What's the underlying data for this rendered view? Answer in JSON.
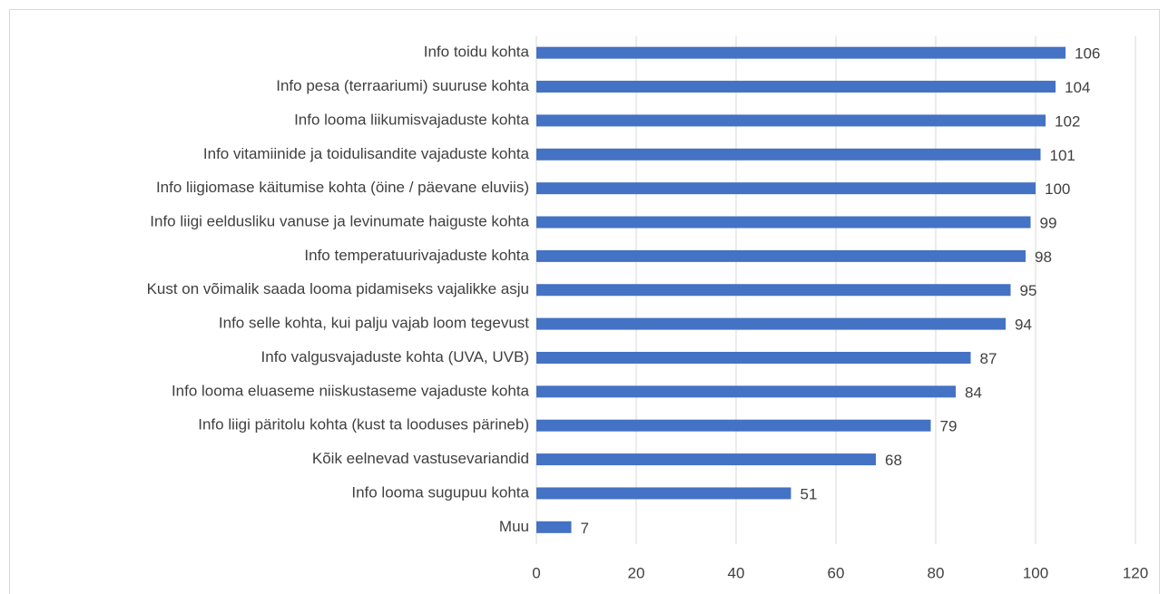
{
  "chart_data": {
    "type": "bar",
    "orientation": "horizontal",
    "categories": [
      "Info toidu kohta",
      "Info pesa (terraariumi) suuruse kohta",
      "Info looma liikumisvajaduste kohta",
      "Info vitamiinide ja toidulisandite vajaduste kohta",
      "Info liigiomase käitumise kohta (öine / päevane eluviis)",
      "Info liigi eeldusliku vanuse ja levinumate haiguste kohta",
      "Info temperatuurivajaduste kohta",
      "Kust on võimalik saada looma pidamiseks vajalikke asju",
      "Info selle kohta, kui palju vajab loom tegevust",
      "Info valgusvajaduste kohta (UVA, UVB)",
      "Info looma eluaseme niiskustaseme vajaduste kohta",
      "Info liigi päritolu kohta (kust ta looduses pärineb)",
      "Kõik eelnevad vastusevariandid",
      "Info looma sugupuu kohta",
      "Muu"
    ],
    "values": [
      106,
      104,
      102,
      101,
      100,
      99,
      98,
      95,
      94,
      87,
      84,
      79,
      68,
      51,
      7
    ],
    "color": "#4472c4",
    "xlim": [
      0,
      120
    ],
    "xticks": [
      0,
      20,
      40,
      60,
      80,
      100,
      120
    ],
    "grid": true
  }
}
